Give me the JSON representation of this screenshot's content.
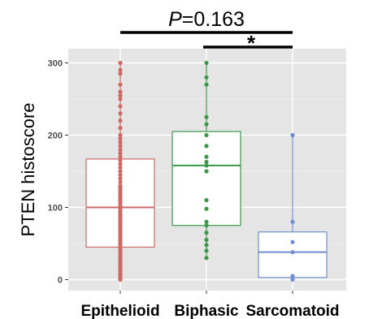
{
  "chart_data": {
    "type": "boxplot",
    "ylabel": "PTEN histoscore",
    "xlabel": "",
    "ylim": [
      -10,
      320
    ],
    "yticks": [
      0,
      100,
      200,
      300
    ],
    "categories": [
      "Epithelioid",
      "Biphasic",
      "Sarcomatoid"
    ],
    "colors": {
      "Epithelioid": "#cc6a66",
      "Biphasic": "#3a9a48",
      "Sarcomatoid": "#6f8fd0"
    },
    "panel_background": "#e5e5e5",
    "grid": true,
    "boxes": [
      {
        "name": "Epithelioid",
        "min": 0,
        "q1": 45,
        "median": 100,
        "q3": 167,
        "max": 300,
        "points": [
          0,
          2,
          4,
          6,
          8,
          10,
          12,
          14,
          16,
          18,
          20,
          22,
          25,
          28,
          30,
          32,
          35,
          38,
          40,
          42,
          45,
          48,
          50,
          52,
          55,
          58,
          60,
          62,
          65,
          68,
          70,
          72,
          75,
          78,
          80,
          83,
          85,
          88,
          90,
          92,
          95,
          98,
          100,
          102,
          105,
          108,
          110,
          113,
          115,
          118,
          120,
          123,
          125,
          128,
          130,
          135,
          140,
          145,
          150,
          155,
          160,
          165,
          170,
          175,
          180,
          185,
          190,
          195,
          200,
          210,
          220,
          230,
          240,
          250,
          255,
          260,
          270,
          285,
          290,
          300
        ]
      },
      {
        "name": "Biphasic",
        "min": 30,
        "q1": 75,
        "median": 158,
        "q3": 205,
        "max": 300,
        "points": [
          30,
          40,
          48,
          55,
          65,
          75,
          80,
          98,
          110,
          150,
          158,
          163,
          170,
          185,
          200,
          215,
          225,
          270,
          280,
          300
        ]
      },
      {
        "name": "Sarcomatoid",
        "min": 0,
        "q1": 3,
        "median": 38,
        "q3": 66,
        "max": 200,
        "points": [
          0,
          5,
          38,
          52,
          80,
          200
        ]
      }
    ],
    "annotations": [
      {
        "text": "P=0.163",
        "italic_prefix": "P",
        "rest": "=0.163",
        "from": "Epithelioid",
        "to": "Sarcomatoid"
      },
      {
        "text": "*",
        "from": "Biphasic",
        "to": "Sarcomatoid"
      }
    ]
  }
}
